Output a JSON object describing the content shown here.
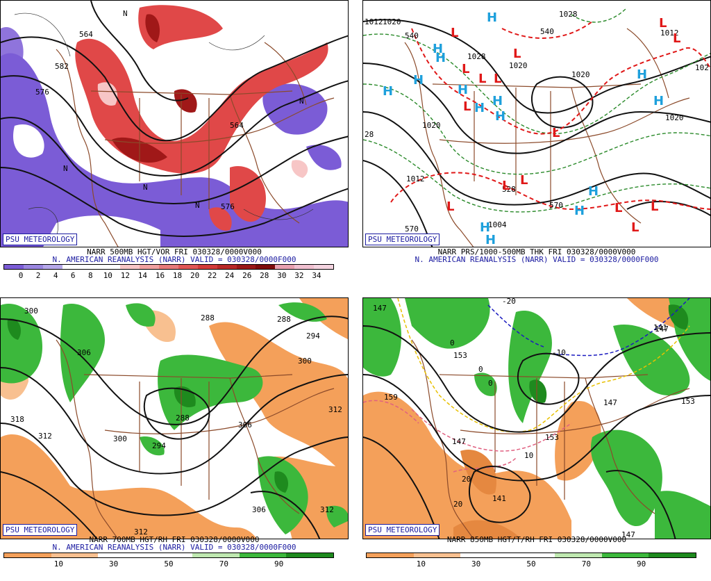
{
  "badge": "PSU METEOROLOGY",
  "colors": {
    "vort_purple": "#7b5cd6",
    "vort_red": "#e04848",
    "vort_darkred": "#a01818",
    "rh_green": "#3cb83c",
    "rh_orange": "#f4a05a",
    "coast": "#8b4a2a",
    "low_red": "#e01818",
    "high_blue": "#1ea0dc"
  },
  "panels": [
    {
      "id": "p1",
      "line1": "NARR 500MB HGT/VOR FRI 030328/0000V000",
      "line2": "N. AMERICAN REANALYSIS (NARR) VALID = 030328/0000F000",
      "colorbar_ticks": [
        "0",
        "2",
        "4",
        "6",
        "8",
        "10",
        "12",
        "14",
        "16",
        "18",
        "20",
        "22",
        "24",
        "26",
        "28",
        "30",
        "32",
        "34"
      ],
      "colorbar_colors": [
        "#7b5cd6",
        "#9a86e0",
        "#b6a8ea",
        "#ffffff",
        "#ffffff",
        "#ffffff",
        "#f7c6c6",
        "#f0a0a0",
        "#e77a7a",
        "#e05656",
        "#d23a3a",
        "#b82828",
        "#9a1818",
        "#7e0c0c",
        "#e8a0b0",
        "#f0c0d0",
        "#f4d4e0"
      ],
      "labels": [
        "564",
        "576",
        "582",
        "564",
        "576",
        "N",
        "N",
        "N",
        "N",
        "N"
      ]
    },
    {
      "id": "p2",
      "line1": "NARR PRS/1000-500MB THK FRI 030328/0000V000",
      "line2": "N. AMERICAN REANALYSIS (NARR) VALID = 030328/0000F000",
      "labels": [
        "1012",
        "1020",
        "1028",
        "1020",
        "1020",
        "1028",
        "1012",
        "1004",
        "1020",
        "1020",
        "1012",
        "570",
        "540",
        "540",
        "570",
        "528",
        "28",
        "102"
      ],
      "highs": [
        "H",
        "H",
        "H",
        "H",
        "H",
        "H",
        "H",
        "H",
        "H",
        "H",
        "H",
        "H",
        "H",
        "H",
        "H"
      ],
      "lows": [
        "L",
        "L",
        "L",
        "L",
        "L",
        "L",
        "L",
        "L",
        "L",
        "L",
        "L",
        "L",
        "L",
        "L",
        "L"
      ]
    },
    {
      "id": "p3",
      "line1": "NARR 700MB HGT/RH FRI 030328/0000V000",
      "line2": "N. AMERICAN REANALYSIS (NARR) VALID = 030328/0000F000",
      "colorbar_ticks": [
        "10",
        "30",
        "50",
        "70",
        "90"
      ],
      "colorbar_colors": [
        "#f4a05a",
        "#f8c090",
        "#ffffff",
        "#ffffff",
        "#bfe8b0",
        "#3cb83c",
        "#1e8a1e"
      ],
      "labels": [
        "300",
        "306",
        "288",
        "288",
        "294",
        "300",
        "312",
        "318",
        "312",
        "300",
        "288",
        "294",
        "306",
        "306",
        "312",
        "312"
      ]
    },
    {
      "id": "p4",
      "line1": "NARR 850MB HGT/T/RH FRI 030328/0000V000",
      "line2": "",
      "colorbar_ticks": [
        "10",
        "30",
        "50",
        "70",
        "90"
      ],
      "colorbar_colors": [
        "#f4a05a",
        "#f8c090",
        "#ffffff",
        "#ffffff",
        "#bfe8b0",
        "#3cb83c",
        "#1e8a1e"
      ],
      "labels": [
        "147",
        "153",
        "159",
        "147",
        "153",
        "147",
        "141",
        "147",
        "141",
        "147",
        "153",
        "-20",
        "-10",
        "10",
        "0",
        "0",
        "0",
        "20",
        "20"
      ]
    }
  ]
}
